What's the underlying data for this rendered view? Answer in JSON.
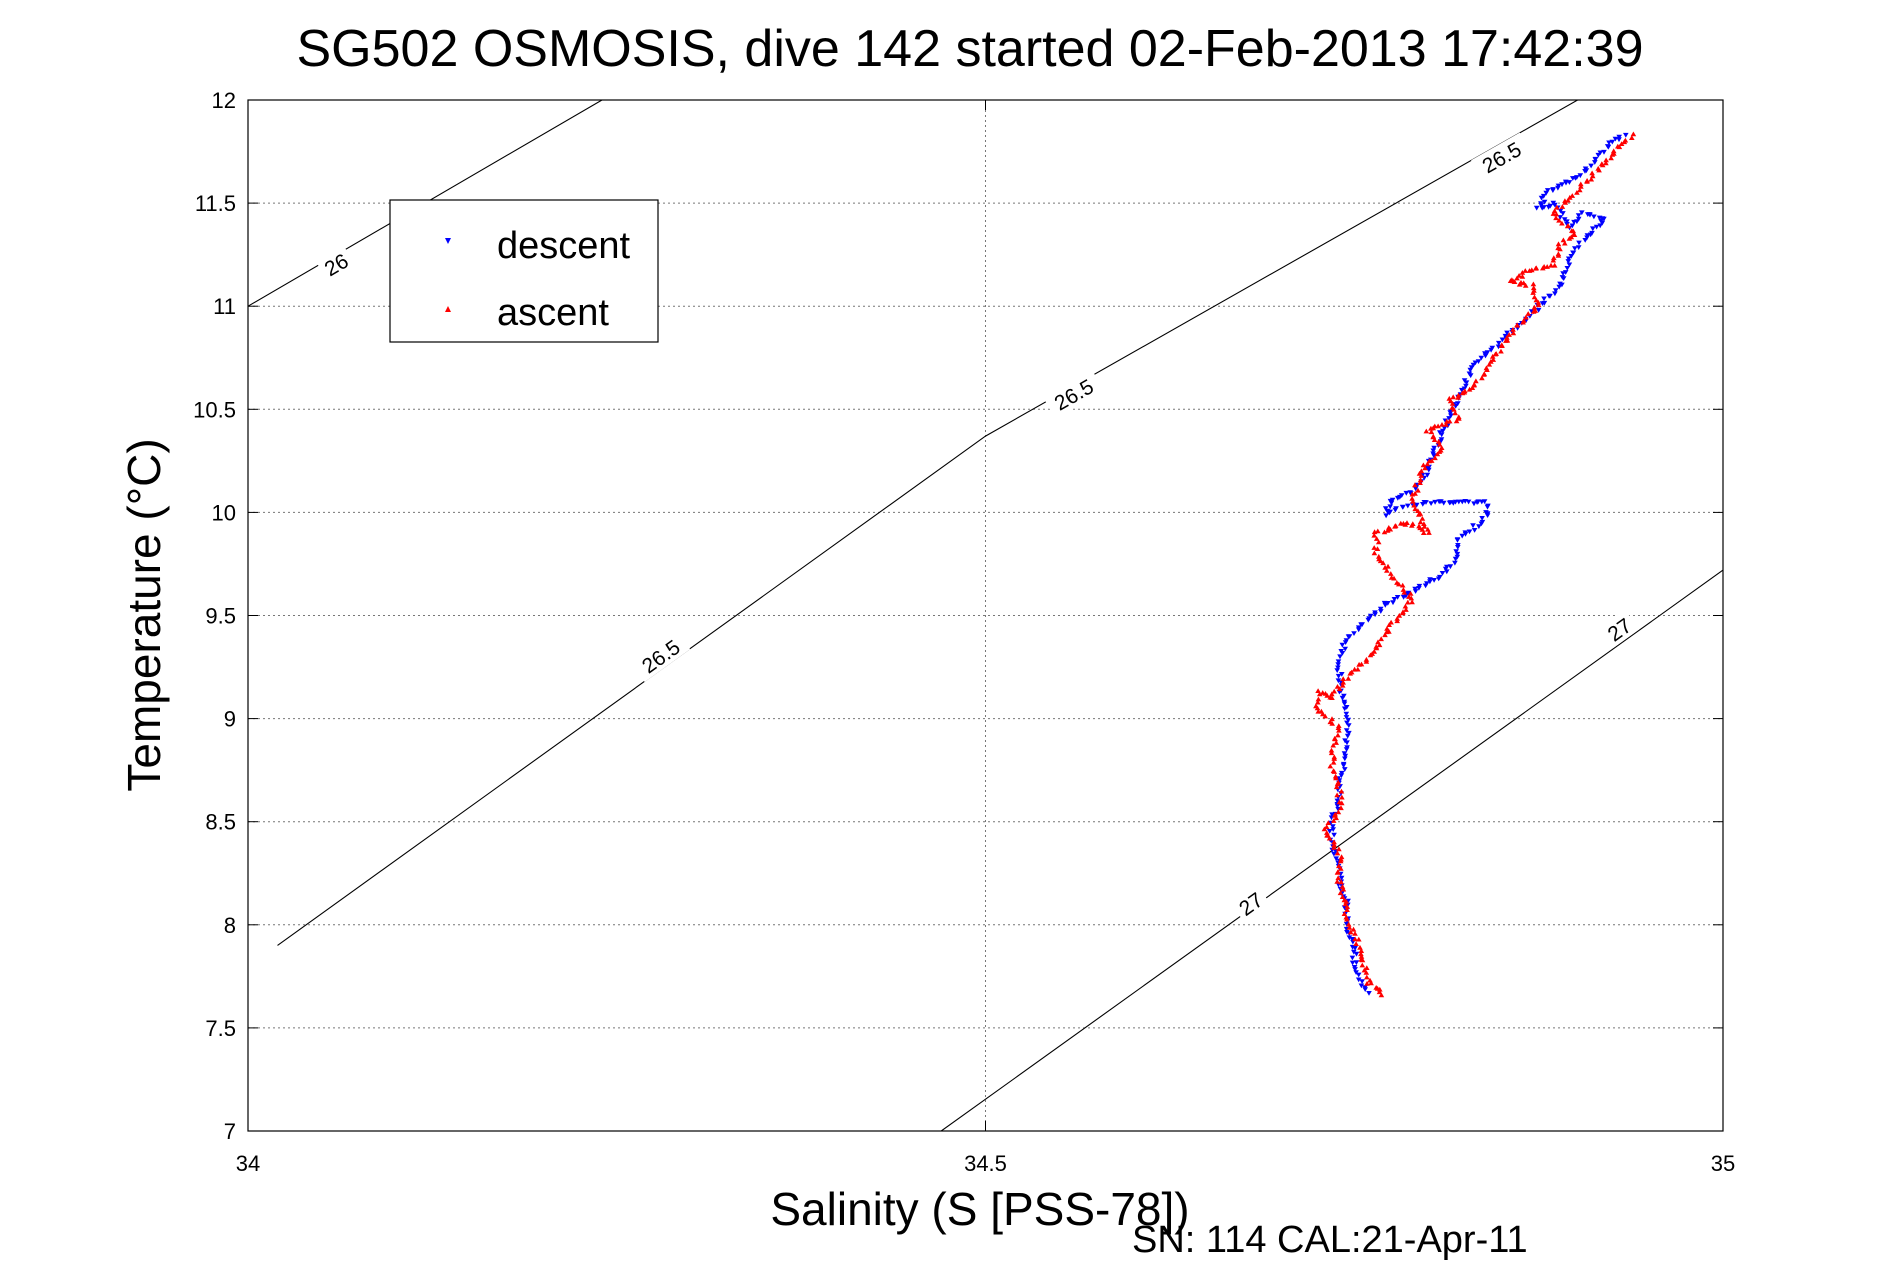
{
  "chart_data": {
    "type": "scatter",
    "title": "SG502 OSMOSIS, dive 142 started 02-Feb-2013 17:42:39",
    "xlabel": "Salinity (S [PSS-78])",
    "ylabel": "Temperature (°C)",
    "xlim": [
      34,
      35
    ],
    "ylim": [
      7,
      12
    ],
    "x_ticks": [
      34,
      34.5,
      35
    ],
    "y_ticks": [
      7,
      7.5,
      8,
      8.5,
      9,
      9.5,
      10,
      10.5,
      11,
      11.5,
      12
    ],
    "x_tick_labels": [
      "34",
      "34.5",
      "35"
    ],
    "y_tick_labels": [
      "7",
      "7.5",
      "8",
      "8.5",
      "9",
      "9.5",
      "10",
      "10.5",
      "11",
      "11.5",
      "12"
    ],
    "grid": true,
    "legend": "top-left",
    "footer": "SN: 114  CAL:21-Apr-11",
    "isopycnals": [
      {
        "label": "26",
        "points": [
          [
            34.0,
            11.0
          ],
          [
            34.24,
            12.0
          ]
        ],
        "labels_at": [
          [
            34.06,
            11.2
          ]
        ]
      },
      {
        "label": "26.5",
        "points": [
          [
            34.02,
            7.9
          ],
          [
            34.5,
            10.37
          ],
          [
            35.0,
            12.4
          ]
        ],
        "labels_at": [
          [
            34.28,
            9.3
          ],
          [
            34.56,
            10.57
          ],
          [
            34.85,
            11.72
          ]
        ]
      },
      {
        "label": "27",
        "points": [
          [
            34.47,
            7.0
          ],
          [
            35.0,
            9.72
          ]
        ],
        "labels_at": [
          [
            34.68,
            8.1
          ],
          [
            34.93,
            9.43
          ]
        ]
      }
    ],
    "series": [
      {
        "name": "descent",
        "color": "#0000ff",
        "marker": "triangle-down",
        "path": [
          [
            34.76,
            7.67
          ],
          [
            34.75,
            7.78
          ],
          [
            34.75,
            7.9
          ],
          [
            34.745,
            8.0
          ],
          [
            34.745,
            8.1
          ],
          [
            34.74,
            8.2
          ],
          [
            34.74,
            8.3
          ],
          [
            34.735,
            8.4
          ],
          [
            34.735,
            8.5
          ],
          [
            34.74,
            8.6
          ],
          [
            34.74,
            8.7
          ],
          [
            34.745,
            8.8
          ],
          [
            34.745,
            8.9
          ],
          [
            34.745,
            9.0
          ],
          [
            34.742,
            9.1
          ],
          [
            34.74,
            9.2
          ],
          [
            34.74,
            9.3
          ],
          [
            34.745,
            9.38
          ],
          [
            34.755,
            9.45
          ],
          [
            34.77,
            9.55
          ],
          [
            34.79,
            9.62
          ],
          [
            34.81,
            9.7
          ],
          [
            34.82,
            9.78
          ],
          [
            34.82,
            9.86
          ],
          [
            34.83,
            9.92
          ],
          [
            34.84,
            9.98
          ],
          [
            34.84,
            10.05
          ],
          [
            34.8,
            10.05
          ],
          [
            34.78,
            10.02
          ],
          [
            34.77,
            9.99
          ],
          [
            34.775,
            10.06
          ],
          [
            34.79,
            10.1
          ],
          [
            34.8,
            10.2
          ],
          [
            34.81,
            10.4
          ],
          [
            34.82,
            10.55
          ],
          [
            34.83,
            10.7
          ],
          [
            34.845,
            10.8
          ],
          [
            34.86,
            10.9
          ],
          [
            34.875,
            11.0
          ],
          [
            34.89,
            11.1
          ],
          [
            34.895,
            11.2
          ],
          [
            34.9,
            11.28
          ],
          [
            34.91,
            11.35
          ],
          [
            34.92,
            11.43
          ],
          [
            34.905,
            11.45
          ],
          [
            34.895,
            11.38
          ],
          [
            34.89,
            11.45
          ],
          [
            34.885,
            11.5
          ],
          [
            34.875,
            11.47
          ],
          [
            34.88,
            11.55
          ],
          [
            34.895,
            11.6
          ],
          [
            34.905,
            11.65
          ],
          [
            34.915,
            11.72
          ],
          [
            34.925,
            11.8
          ],
          [
            34.935,
            11.84
          ]
        ]
      },
      {
        "name": "ascent",
        "color": "#ff0000",
        "marker": "triangle-up",
        "path": [
          [
            34.77,
            7.66
          ],
          [
            34.76,
            7.72
          ],
          [
            34.755,
            7.85
          ],
          [
            34.75,
            7.95
          ],
          [
            34.745,
            8.05
          ],
          [
            34.74,
            8.2
          ],
          [
            34.74,
            8.35
          ],
          [
            34.73,
            8.45
          ],
          [
            34.74,
            8.55
          ],
          [
            34.74,
            8.65
          ],
          [
            34.735,
            8.75
          ],
          [
            34.735,
            8.85
          ],
          [
            34.74,
            8.95
          ],
          [
            34.725,
            9.05
          ],
          [
            34.725,
            9.13
          ],
          [
            34.735,
            9.1
          ],
          [
            34.745,
            9.2
          ],
          [
            34.76,
            9.3
          ],
          [
            34.77,
            9.4
          ],
          [
            34.78,
            9.5
          ],
          [
            34.79,
            9.58
          ],
          [
            34.775,
            9.7
          ],
          [
            34.765,
            9.8
          ],
          [
            34.765,
            9.9
          ],
          [
            34.785,
            9.95
          ],
          [
            34.8,
            9.9
          ],
          [
            34.79,
            10.05
          ],
          [
            34.795,
            10.2
          ],
          [
            34.81,
            10.3
          ],
          [
            34.8,
            10.4
          ],
          [
            34.82,
            10.45
          ],
          [
            34.815,
            10.55
          ],
          [
            34.83,
            10.6
          ],
          [
            34.84,
            10.7
          ],
          [
            34.85,
            10.8
          ],
          [
            34.86,
            10.9
          ],
          [
            34.875,
            11.0
          ],
          [
            34.87,
            11.1
          ],
          [
            34.855,
            11.12
          ],
          [
            34.87,
            11.18
          ],
          [
            34.885,
            11.2
          ],
          [
            34.89,
            11.3
          ],
          [
            34.9,
            11.35
          ],
          [
            34.885,
            11.45
          ],
          [
            34.9,
            11.55
          ],
          [
            34.91,
            11.62
          ],
          [
            34.92,
            11.7
          ],
          [
            34.93,
            11.78
          ],
          [
            34.94,
            11.84
          ]
        ]
      }
    ]
  }
}
